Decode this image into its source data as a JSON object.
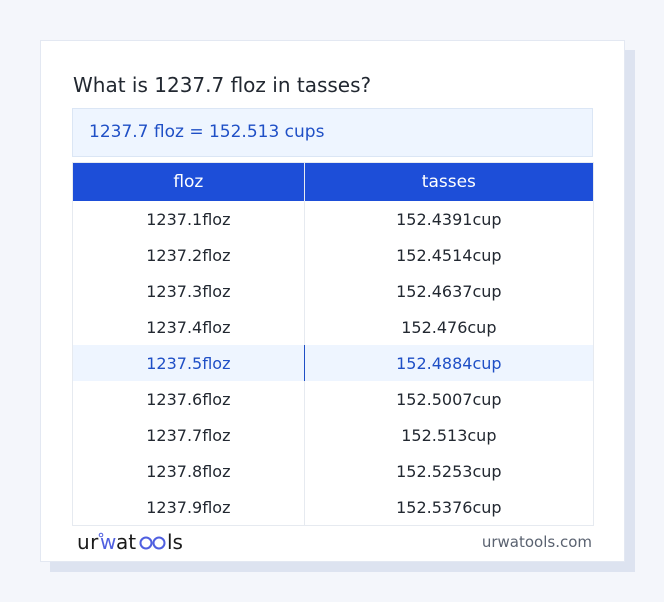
{
  "title": "What is 1237.7 floz in tasses?",
  "result": "1237.7 floz = 152.513 cups",
  "table": {
    "headers": [
      "floz",
      "tasses"
    ],
    "rows": [
      [
        "1237.1floz",
        "152.4391cup"
      ],
      [
        "1237.2floz",
        "152.4514cup"
      ],
      [
        "1237.3floz",
        "152.4637cup"
      ],
      [
        "1237.4floz",
        "152.476cup"
      ],
      [
        "1237.5floz",
        "152.4884cup"
      ],
      [
        "1237.6floz",
        "152.5007cup"
      ],
      [
        "1237.7floz",
        "152.513cup"
      ],
      [
        "1237.8floz",
        "152.5253cup"
      ],
      [
        "1237.9floz",
        "152.5376cup"
      ]
    ],
    "highlighted_row": 4
  },
  "footer": {
    "logo": "urwatools",
    "site": "urwatools.com"
  },
  "colors": {
    "accent": "#1d4ed8",
    "highlight_bg": "#eef5ff",
    "highlight_text": "#1f4fc6"
  }
}
